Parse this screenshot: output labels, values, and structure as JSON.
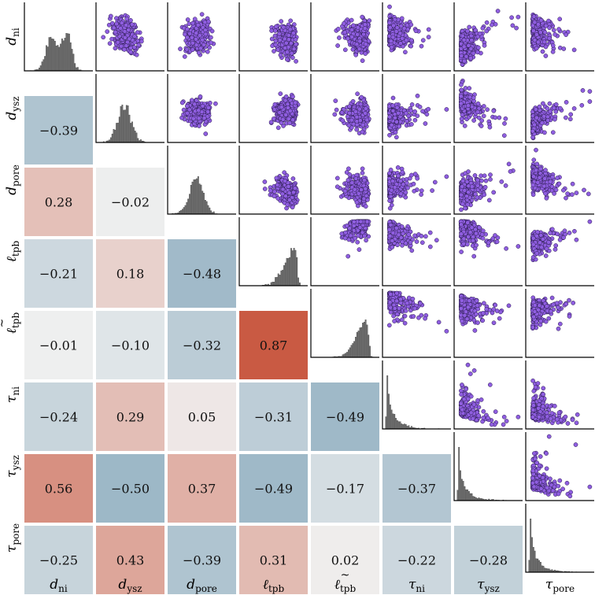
{
  "chart_data": {
    "type": "pairplot",
    "variables": [
      {
        "key": "d_ni",
        "base": "d",
        "sub": "ni",
        "tilde": false
      },
      {
        "key": "d_ysz",
        "base": "d",
        "sub": "ysz",
        "tilde": false
      },
      {
        "key": "d_pore",
        "base": "d",
        "sub": "pore",
        "tilde": false
      },
      {
        "key": "l_tpb",
        "base": "ℓ",
        "sub": "tpb",
        "tilde": false
      },
      {
        "key": "l_tilde_tpb",
        "base": "ℓ",
        "sub": "tpb",
        "tilde": true
      },
      {
        "key": "tau_ni",
        "base": "τ",
        "sub": "ni",
        "tilde": false
      },
      {
        "key": "tau_ysz",
        "base": "τ",
        "sub": "ysz",
        "tilde": false
      },
      {
        "key": "tau_pore",
        "base": "τ",
        "sub": "pore",
        "tilde": false
      }
    ],
    "lower_triangle": "correlation coefficients",
    "upper_triangle": "scatter plots",
    "diagonal": "histograms",
    "correlations": [
      {
        "row": 1,
        "col": 0,
        "label": "−0.39",
        "value": -0.39
      },
      {
        "row": 2,
        "col": 0,
        "label": "0.28",
        "value": 0.28
      },
      {
        "row": 2,
        "col": 1,
        "label": "−0.02",
        "value": -0.02
      },
      {
        "row": 3,
        "col": 0,
        "label": "−0.21",
        "value": -0.21
      },
      {
        "row": 3,
        "col": 1,
        "label": "0.18",
        "value": 0.18
      },
      {
        "row": 3,
        "col": 2,
        "label": "−0.48",
        "value": -0.48
      },
      {
        "row": 4,
        "col": 0,
        "label": "−0.01",
        "value": -0.01
      },
      {
        "row": 4,
        "col": 1,
        "label": "−0.10",
        "value": -0.1
      },
      {
        "row": 4,
        "col": 2,
        "label": "−0.32",
        "value": -0.32
      },
      {
        "row": 4,
        "col": 3,
        "label": "0.87",
        "value": 0.87
      },
      {
        "row": 5,
        "col": 0,
        "label": "−0.24",
        "value": -0.24
      },
      {
        "row": 5,
        "col": 1,
        "label": "0.29",
        "value": 0.29
      },
      {
        "row": 5,
        "col": 2,
        "label": "0.05",
        "value": 0.05
      },
      {
        "row": 5,
        "col": 3,
        "label": "−0.31",
        "value": -0.31
      },
      {
        "row": 5,
        "col": 4,
        "label": "−0.49",
        "value": -0.49
      },
      {
        "row": 6,
        "col": 0,
        "label": "0.56",
        "value": 0.56
      },
      {
        "row": 6,
        "col": 1,
        "label": "−0.50",
        "value": -0.5
      },
      {
        "row": 6,
        "col": 2,
        "label": "0.37",
        "value": 0.37
      },
      {
        "row": 6,
        "col": 3,
        "label": "−0.49",
        "value": -0.49
      },
      {
        "row": 6,
        "col": 4,
        "label": "−0.17",
        "value": -0.17
      },
      {
        "row": 6,
        "col": 5,
        "label": "−0.37",
        "value": -0.37
      },
      {
        "row": 7,
        "col": 0,
        "label": "−0.25",
        "value": -0.25
      },
      {
        "row": 7,
        "col": 1,
        "label": "0.43",
        "value": 0.43
      },
      {
        "row": 7,
        "col": 2,
        "label": "−0.39",
        "value": -0.39
      },
      {
        "row": 7,
        "col": 3,
        "label": "0.31",
        "value": 0.31
      },
      {
        "row": 7,
        "col": 4,
        "label": "0.02",
        "value": 0.02
      },
      {
        "row": 7,
        "col": 5,
        "label": "−0.22",
        "value": -0.22
      },
      {
        "row": 7,
        "col": 6,
        "label": "−0.28",
        "value": -0.28
      }
    ],
    "diagonal_shapes": [
      "bimodal",
      "normal",
      "normal",
      "left-skewed",
      "left-skewed",
      "right-skewed",
      "right-skewed",
      "right-skewed"
    ],
    "scatter_point_color": "#8f5ee0",
    "scatter_edge_color": "#2a1b4d",
    "histogram_color": "#707070",
    "positive_color": "#c8553d",
    "negative_color": "#5b8ba6",
    "neutral_color": "#f0f0f0"
  }
}
